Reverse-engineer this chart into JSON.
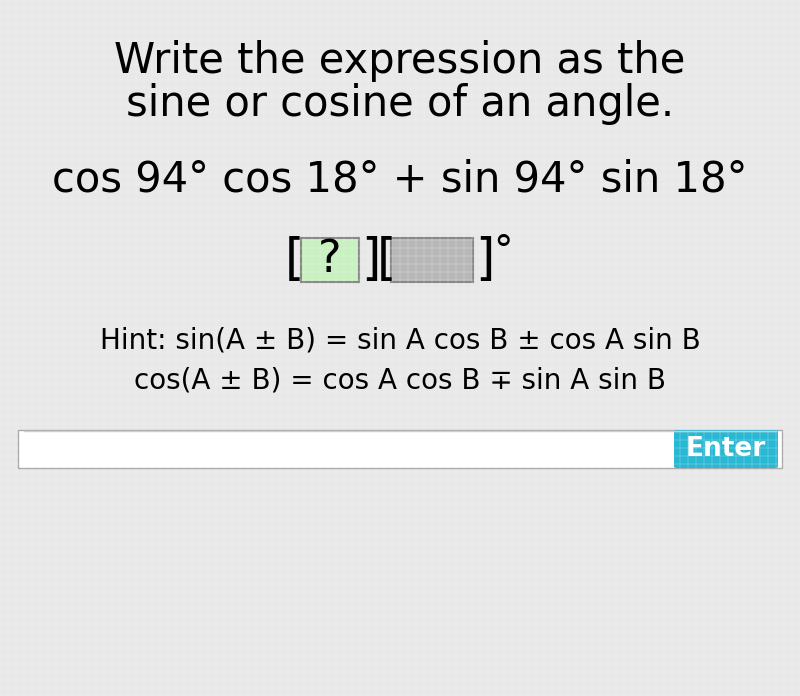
{
  "background_color": "#e8e8e8",
  "title_line1": "Write the expression as the",
  "title_line2": "sine or cosine of an angle.",
  "expression": "cos 94° cos 18° + sin 94° sin 18°",
  "hint_line1": "Hint: sin(A ± B) = sin A cos B ± cos A sin B",
  "hint_line2": "cos(A ± B) = cos A cos B ∓ sin A sin B",
  "input_bar_color": "#ffffff",
  "input_bar_border": "#cccccc",
  "enter_button_color": "#29b8d4",
  "enter_button_text": "Enter",
  "enter_button_text_color": "#ffffff",
  "question_box_color": "#c8f0c0",
  "answer_box_color": "#b8b8b8",
  "title_fontsize": 30,
  "expression_fontsize": 30,
  "bracket_fontsize": 30,
  "hint_fontsize": 20,
  "enter_fontsize": 19
}
